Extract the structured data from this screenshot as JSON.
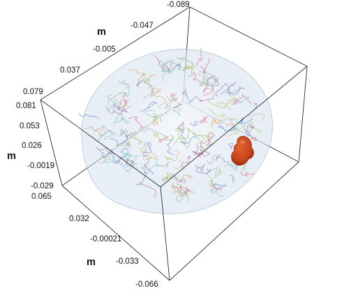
{
  "axes": {
    "top": {
      "unit": "m",
      "ticks": [
        "-0.089",
        "-0.047",
        "-0.005",
        "0.037",
        "0.079"
      ]
    },
    "left": {
      "unit": "m",
      "ticks": [
        "0.081",
        "0.053",
        "0.026",
        "-0.0019",
        "-0.029"
      ]
    },
    "bottom": {
      "unit": "m",
      "ticks": [
        "0.065",
        "0.032",
        "-0.00021",
        "-0.033",
        "-0.066"
      ]
    }
  },
  "colors": {
    "box_lines": "#2b2b2b",
    "brain_tint": "#c9d8ea",
    "lesion": "#c8431a",
    "text": "#111111",
    "background": "#ffffff"
  },
  "brain_mesh": {
    "shown_as": "translucent multicolored cortical surface mesh",
    "stroke_colors": [
      "#7fae6a",
      "#d9577e",
      "#5b78c4",
      "#a5b84a",
      "#8e6fb0",
      "#6cc0b8",
      "#e0a35c",
      "#9aa6b8"
    ]
  },
  "lesion": {
    "shown_as": "opaque orange-red 3D blob"
  }
}
